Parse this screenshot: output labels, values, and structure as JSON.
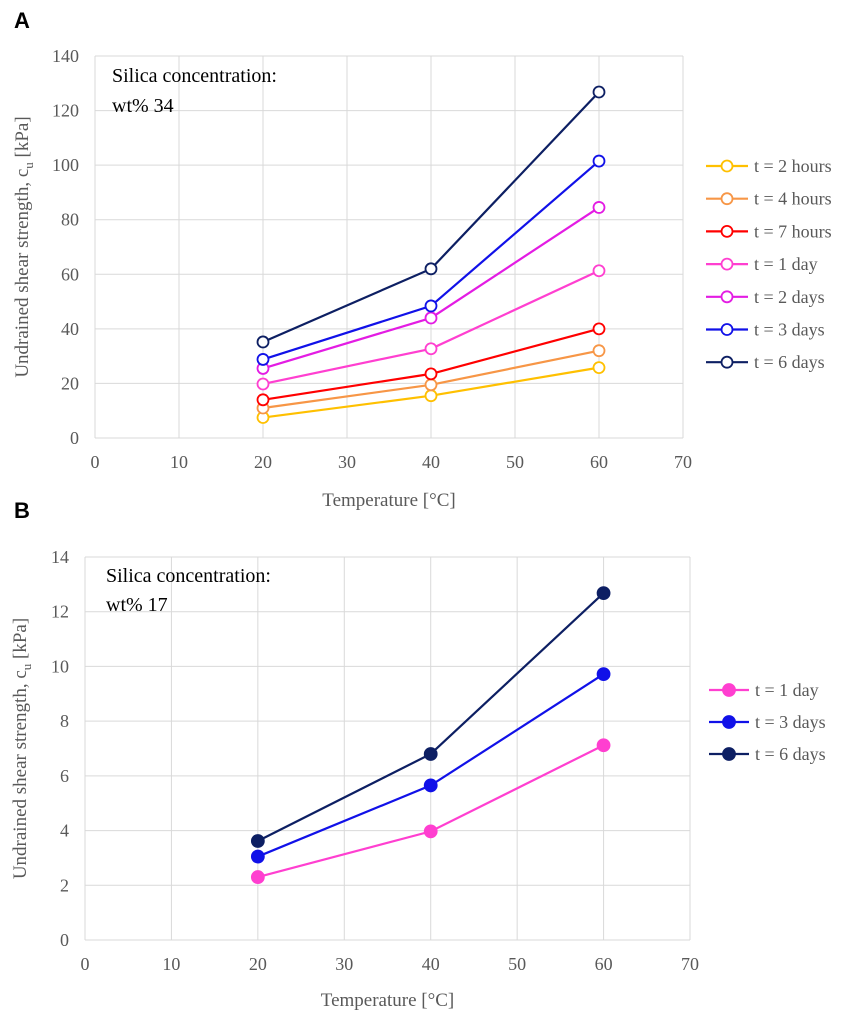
{
  "chart_data": [
    {
      "panel_label": "A",
      "type": "line",
      "marker_style": "hollow-circle",
      "annotation": [
        "Silica concentration:",
        "wt% 34"
      ],
      "xlabel": "Temperature [°C]",
      "ylabel": "Undrained shear strength, c",
      "ylabel_subscript": "u",
      "ylabel_unit": " [kPa]",
      "xlim": [
        0,
        70
      ],
      "ylim": [
        0,
        140
      ],
      "xticks": [
        0,
        10,
        20,
        30,
        40,
        50,
        60,
        70
      ],
      "yticks": [
        0,
        20,
        40,
        60,
        80,
        100,
        120,
        140
      ],
      "grid": true,
      "legend_position": "right",
      "x": [
        20,
        40,
        60
      ],
      "series": [
        {
          "name": "t = 2 hours",
          "color": "#FFC000",
          "values": [
            7.5,
            15.5,
            25.8
          ]
        },
        {
          "name": "t = 4 hours",
          "color": "#F79646",
          "values": [
            11,
            19.5,
            32
          ]
        },
        {
          "name": "t = 7 hours",
          "color": "#FF0000",
          "values": [
            14,
            23.5,
            40
          ]
        },
        {
          "name": "t = 1 day",
          "color": "#FF3FD0",
          "values": [
            19.8,
            32.7,
            61.3
          ]
        },
        {
          "name": "t = 2 days",
          "color": "#E31CE3",
          "values": [
            25.5,
            44,
            84.5
          ]
        },
        {
          "name": "t = 3 days",
          "color": "#1111E8",
          "values": [
            28.8,
            48.4,
            101.5
          ]
        },
        {
          "name": "t = 6 days",
          "color": "#0D1F63",
          "values": [
            35.2,
            62,
            126.8
          ]
        }
      ]
    },
    {
      "panel_label": "B",
      "type": "line",
      "marker_style": "filled-circle",
      "annotation": [
        "Silica concentration:",
        "wt% 17"
      ],
      "xlabel": "Temperature [°C]",
      "ylabel": "Undrained shear strength, c",
      "ylabel_subscript": "u",
      "ylabel_unit": " [kPa]",
      "xlim": [
        0,
        70
      ],
      "ylim": [
        0,
        14
      ],
      "xticks": [
        0,
        10,
        20,
        30,
        40,
        50,
        60,
        70
      ],
      "yticks": [
        0,
        2,
        4,
        6,
        8,
        10,
        12,
        14
      ],
      "grid": true,
      "legend_position": "right",
      "x": [
        20,
        40,
        60
      ],
      "series": [
        {
          "name": "t = 1 day",
          "color": "#FF3FD0",
          "values": [
            2.3,
            3.97,
            7.12
          ]
        },
        {
          "name": "t = 3 days",
          "color": "#1111E8",
          "values": [
            3.05,
            5.65,
            9.72
          ]
        },
        {
          "name": "t = 6 days",
          "color": "#0D1F63",
          "values": [
            3.62,
            6.8,
            12.68
          ]
        }
      ]
    }
  ]
}
